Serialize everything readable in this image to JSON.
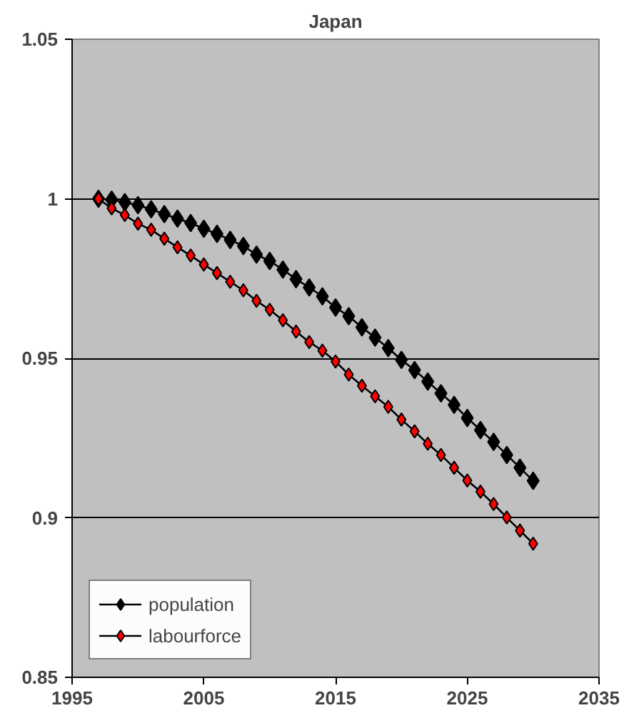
{
  "chart_data": {
    "type": "line",
    "title": "Japan",
    "x": [
      1997,
      1998,
      1999,
      2000,
      2001,
      2002,
      2003,
      2004,
      2005,
      2006,
      2007,
      2008,
      2009,
      2010,
      2011,
      2012,
      2013,
      2014,
      2015,
      2016,
      2017,
      2018,
      2019,
      2020,
      2021,
      2022,
      2023,
      2024,
      2025,
      2026,
      2027,
      2028,
      2029,
      2030
    ],
    "series": [
      {
        "name": "population",
        "color": "#000000",
        "values": [
          1.0,
          0.9997,
          0.9989,
          0.998,
          0.9967,
          0.9952,
          0.9938,
          0.9924,
          0.9906,
          0.989,
          0.9871,
          0.9852,
          0.9825,
          0.9805,
          0.9778,
          0.9748,
          0.9722,
          0.9694,
          0.9659,
          0.9632,
          0.9597,
          0.9565,
          0.9532,
          0.9495,
          0.9463,
          0.9427,
          0.939,
          0.9354,
          0.9313,
          0.9275,
          0.9238,
          0.9197,
          0.9157,
          0.9116
        ]
      },
      {
        "name": "labourforce",
        "color": "#ff0000",
        "values": [
          1.0,
          0.997,
          0.9949,
          0.9922,
          0.9903,
          0.9875,
          0.9848,
          0.9822,
          0.9794,
          0.9767,
          0.974,
          0.9713,
          0.968,
          0.9652,
          0.9619,
          0.9584,
          0.9551,
          0.9524,
          0.949,
          0.9449,
          0.9414,
          0.9381,
          0.9348,
          0.9308,
          0.9271,
          0.9232,
          0.9197,
          0.9157,
          0.9117,
          0.9082,
          0.9043,
          0.9001,
          0.896,
          0.8919
        ]
      }
    ],
    "xlim": [
      1995,
      2035
    ],
    "xticks": [
      1995,
      2005,
      2015,
      2025,
      2035
    ],
    "ylim": [
      0.85,
      1.05
    ],
    "yticks": [
      0.85,
      0.9,
      0.95,
      1,
      1.05
    ],
    "grid": "y",
    "legend": "bottom left",
    "marker": "diamond",
    "line_style": "solid"
  }
}
